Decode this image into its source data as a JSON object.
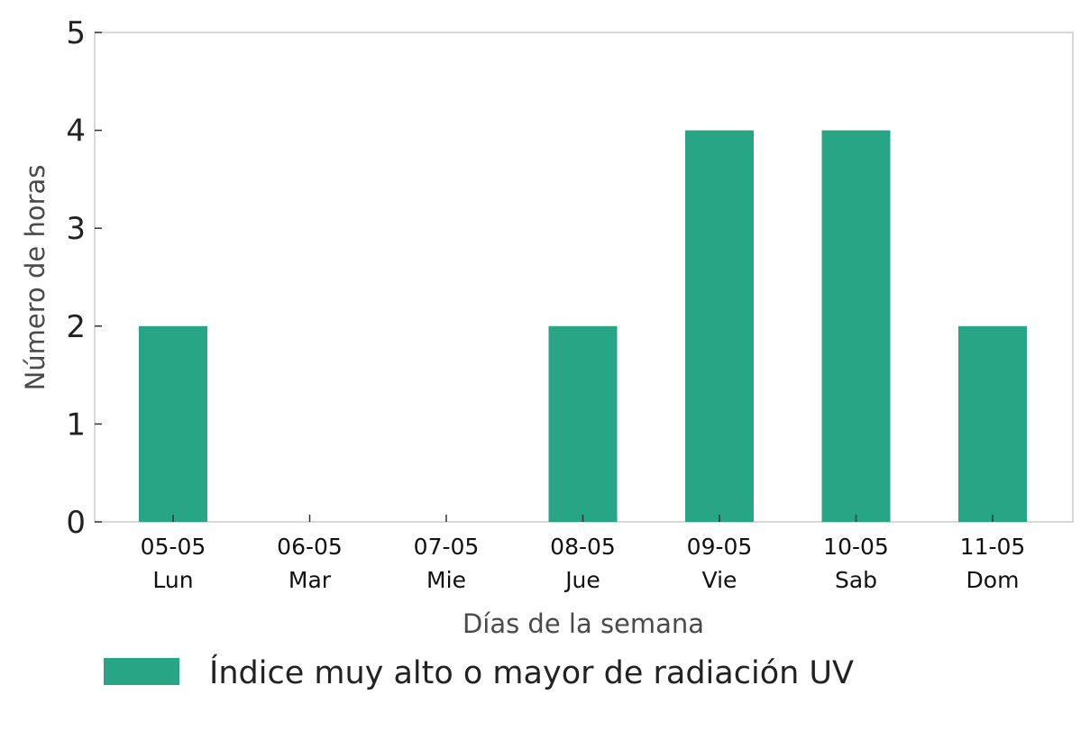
{
  "chart_data": {
    "type": "bar",
    "categories": [
      [
        "05-05",
        "Lun"
      ],
      [
        "06-05",
        "Mar"
      ],
      [
        "07-05",
        "Mie"
      ],
      [
        "08-05",
        "Jue"
      ],
      [
        "09-05",
        "Vie"
      ],
      [
        "10-05",
        "Sab"
      ],
      [
        "11-05",
        "Dom"
      ]
    ],
    "series": [
      {
        "name": "Índice muy alto o mayor de radiación UV",
        "values": [
          2,
          0,
          0,
          2,
          4,
          4,
          2
        ],
        "color": "#27a585"
      }
    ],
    "xlabel": "Días de la semana",
    "ylabel": "Número de horas",
    "ylim": [
      0,
      5
    ],
    "yticks": [
      "0",
      "1",
      "2",
      "3",
      "4",
      "5"
    ],
    "grid": false,
    "legend_position": "bottom-left"
  }
}
